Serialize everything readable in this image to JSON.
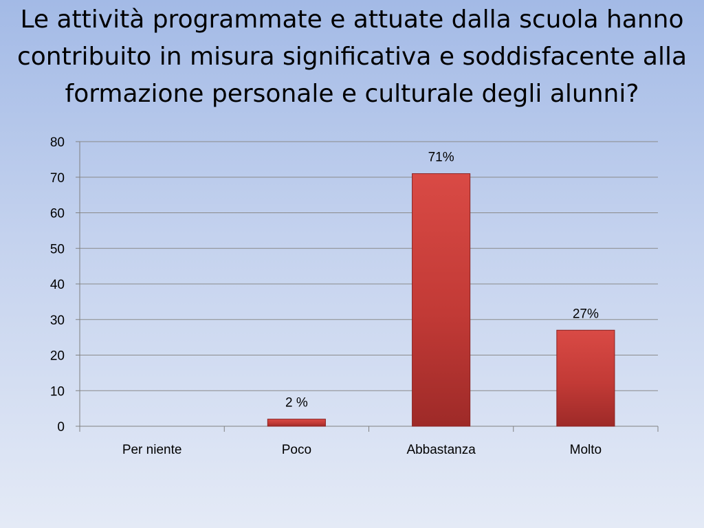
{
  "slide": {
    "title": "Le attività programmate e attuate dalla scuola hanno contribuito in misura significativa e soddisfacente alla formazione personale e culturale degli alunni?"
  },
  "chart_data": {
    "type": "bar",
    "categories": [
      "Per niente",
      "Poco",
      "Abbastanza",
      "Molto"
    ],
    "values": [
      0,
      2,
      71,
      27
    ],
    "data_labels": [
      "",
      "2 %",
      "71%",
      "27%"
    ],
    "yticks": [
      "0",
      "10",
      "20",
      "30",
      "40",
      "50",
      "60",
      "70",
      "80"
    ],
    "ylim": [
      0,
      80
    ],
    "ytick_step": 10,
    "grid": true,
    "legend": "none",
    "title": "Le attività programmate e attuate dalla scuola hanno contribuito in misura significativa e soddisfacente alla formazione personale e culturale degli alunni?",
    "xlabel": "",
    "ylabel": "",
    "colors": {
      "bar_top": "#d94a45",
      "bar_mid": "#c23a36",
      "bar_bottom": "#9e2a28",
      "bar_edge": "#8a2220",
      "grid": "#8a8a8a",
      "axis": "#808080"
    }
  }
}
